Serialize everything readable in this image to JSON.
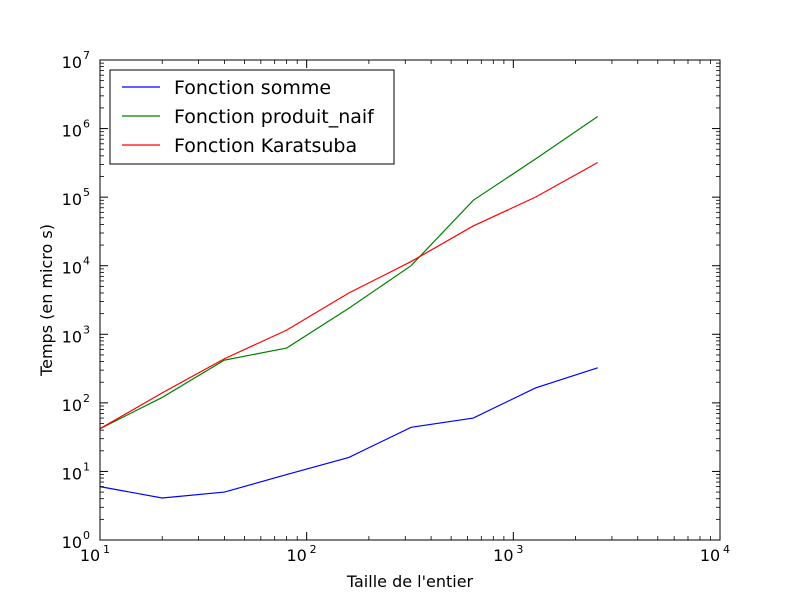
{
  "chart_data": {
    "type": "line",
    "xlabel": "Taille de l'entier",
    "ylabel": "Temps (en micro s)",
    "xscale": "log",
    "yscale": "log",
    "xlim": [
      10,
      10000
    ],
    "ylim": [
      1,
      10000000
    ],
    "x_ticks": [
      {
        "value": 10,
        "base": "10",
        "exp": "1"
      },
      {
        "value": 100,
        "base": "10",
        "exp": "2"
      },
      {
        "value": 1000,
        "base": "10",
        "exp": "3"
      },
      {
        "value": 10000,
        "base": "10",
        "exp": "4"
      }
    ],
    "y_ticks": [
      {
        "value": 1,
        "base": "10",
        "exp": "0"
      },
      {
        "value": 10,
        "base": "10",
        "exp": "1"
      },
      {
        "value": 100,
        "base": "10",
        "exp": "2"
      },
      {
        "value": 1000,
        "base": "10",
        "exp": "3"
      },
      {
        "value": 10000,
        "base": "10",
        "exp": "4"
      },
      {
        "value": 100000,
        "base": "10",
        "exp": "5"
      },
      {
        "value": 1000000,
        "base": "10",
        "exp": "6"
      },
      {
        "value": 10000000,
        "base": "10",
        "exp": "7"
      }
    ],
    "legend_position": "top-left",
    "grid": false,
    "x": [
      10,
      20,
      40,
      80,
      160,
      320,
      640,
      1280,
      2560
    ],
    "series": [
      {
        "name": "Fonction somme",
        "color": "#0000ff",
        "values": [
          6,
          4.1,
          5,
          9,
          16,
          44,
          60,
          165,
          325
        ]
      },
      {
        "name": "Fonction produit_naif",
        "color": "#008000",
        "values": [
          42,
          120,
          420,
          630,
          2400,
          10000,
          90000,
          360000,
          1500000
        ]
      },
      {
        "name": "Fonction Karatsuba",
        "color": "#ff0000",
        "values": [
          42,
          140,
          440,
          1150,
          4000,
          11500,
          38000,
          100000,
          320000
        ]
      }
    ]
  }
}
